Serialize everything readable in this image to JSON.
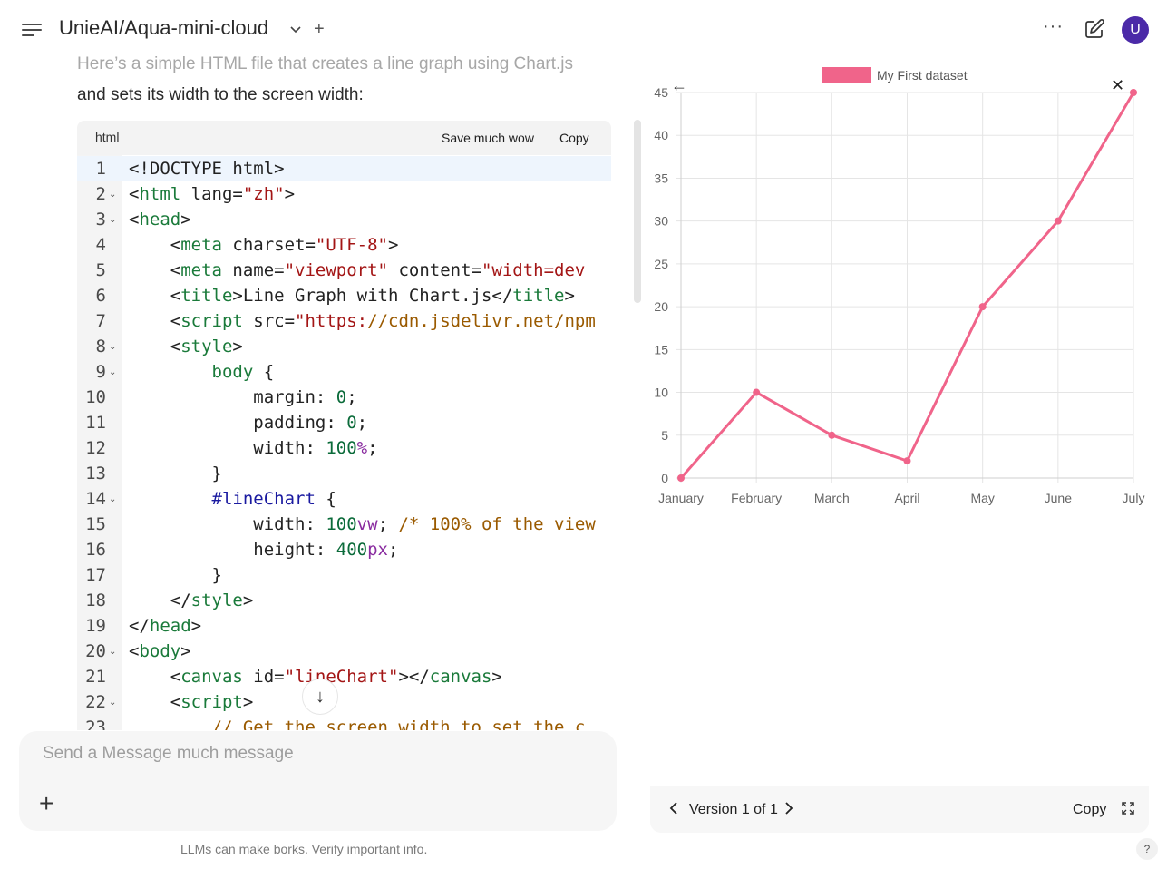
{
  "header": {
    "title": "UnieAI/Aqua-mini-cloud",
    "add_label": "+",
    "more_label": "···",
    "avatar_initial": "U"
  },
  "message": {
    "line1": "Here’s a simple HTML file that creates a line graph using Chart.js",
    "line2": "and sets its width to the screen width:"
  },
  "code_block": {
    "language": "html",
    "save_label": "Save much wow",
    "copy_label": "Copy",
    "line_numbers": [
      "1",
      "2",
      "3",
      "4",
      "5",
      "6",
      "7",
      "8",
      "9",
      "10",
      "11",
      "12",
      "13",
      "14",
      "15",
      "16",
      "17",
      "18",
      "19",
      "20",
      "21",
      "22",
      "23"
    ],
    "lines": [
      "<!DOCTYPE html>",
      "<html lang=\"zh\">",
      "<head>",
      "    <meta charset=\"UTF-8\">",
      "    <meta name=\"viewport\" content=\"width=dev",
      "    <title>Line Graph with Chart.js</title>",
      "    <script src=\"https://cdn.jsdelivr.net/npm",
      "    <style>",
      "        body {",
      "            margin: 0;",
      "            padding: 0;",
      "            width: 100%;",
      "        }",
      "        #lineChart {",
      "            width: 100vw; /* 100% of the view",
      "            height: 400px;",
      "        }",
      "    </style>",
      "</head>",
      "<body>",
      "    <canvas id=\"lineChart\"></canvas>",
      "    <script>",
      "        // Get the screen width to set the c"
    ]
  },
  "input": {
    "placeholder": "Send a Message much message",
    "add_label": "+"
  },
  "disclaimer": "LLMs can make borks. Verify important info.",
  "help_label": "?",
  "artifact": {
    "back_label": "←",
    "close_label": "✕",
    "version_label": "Version 1 of 1",
    "copy_label": "Copy"
  },
  "chart_data": {
    "type": "line",
    "categories": [
      "January",
      "February",
      "March",
      "April",
      "May",
      "June",
      "July"
    ],
    "series": [
      {
        "name": "My First dataset",
        "values": [
          0,
          10,
          5,
          2,
          20,
          30,
          45
        ],
        "color": "#f0648a"
      }
    ],
    "ylim": [
      0,
      45
    ],
    "yticks": [
      0,
      5,
      10,
      15,
      20,
      25,
      30,
      35,
      40,
      45
    ],
    "grid": true,
    "legend": "top"
  },
  "colors": {
    "accent": "#4b2aa8",
    "line": "#f0648a",
    "grid": "#e5e5e5"
  }
}
